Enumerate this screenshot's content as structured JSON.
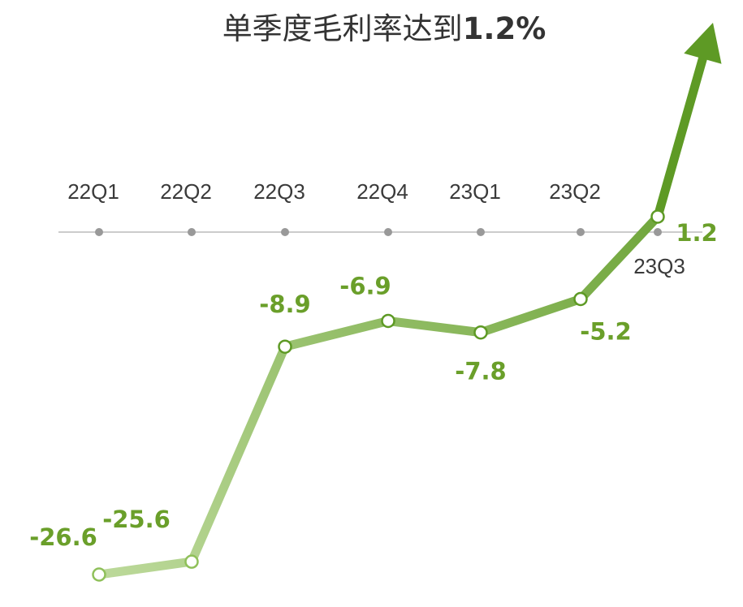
{
  "chart_data": {
    "type": "line",
    "title_prefix": "单季度毛利率达到",
    "title_highlight": "1.2%",
    "categories": [
      "22Q1",
      "22Q2",
      "22Q3",
      "22Q4",
      "23Q1",
      "23Q2",
      "23Q3"
    ],
    "values": [
      -26.6,
      -25.6,
      -8.9,
      -6.9,
      -7.8,
      -5.2,
      1.2
    ],
    "value_labels": [
      "-26.6",
      "-25.6",
      "-8.9",
      "-6.9",
      "-7.8",
      "-5.2",
      "1.2"
    ],
    "xlabel": "",
    "ylabel": "",
    "ylim": [
      -27,
      5
    ],
    "grid": false,
    "colors": {
      "line_light": "#bcd99a",
      "line_dark": "#5e9a25",
      "label": "#6a9f2a",
      "axis": "#cccccc",
      "axis_dot": "#999999",
      "tick_text": "#3a3a3a",
      "title_text": "#333333"
    }
  }
}
